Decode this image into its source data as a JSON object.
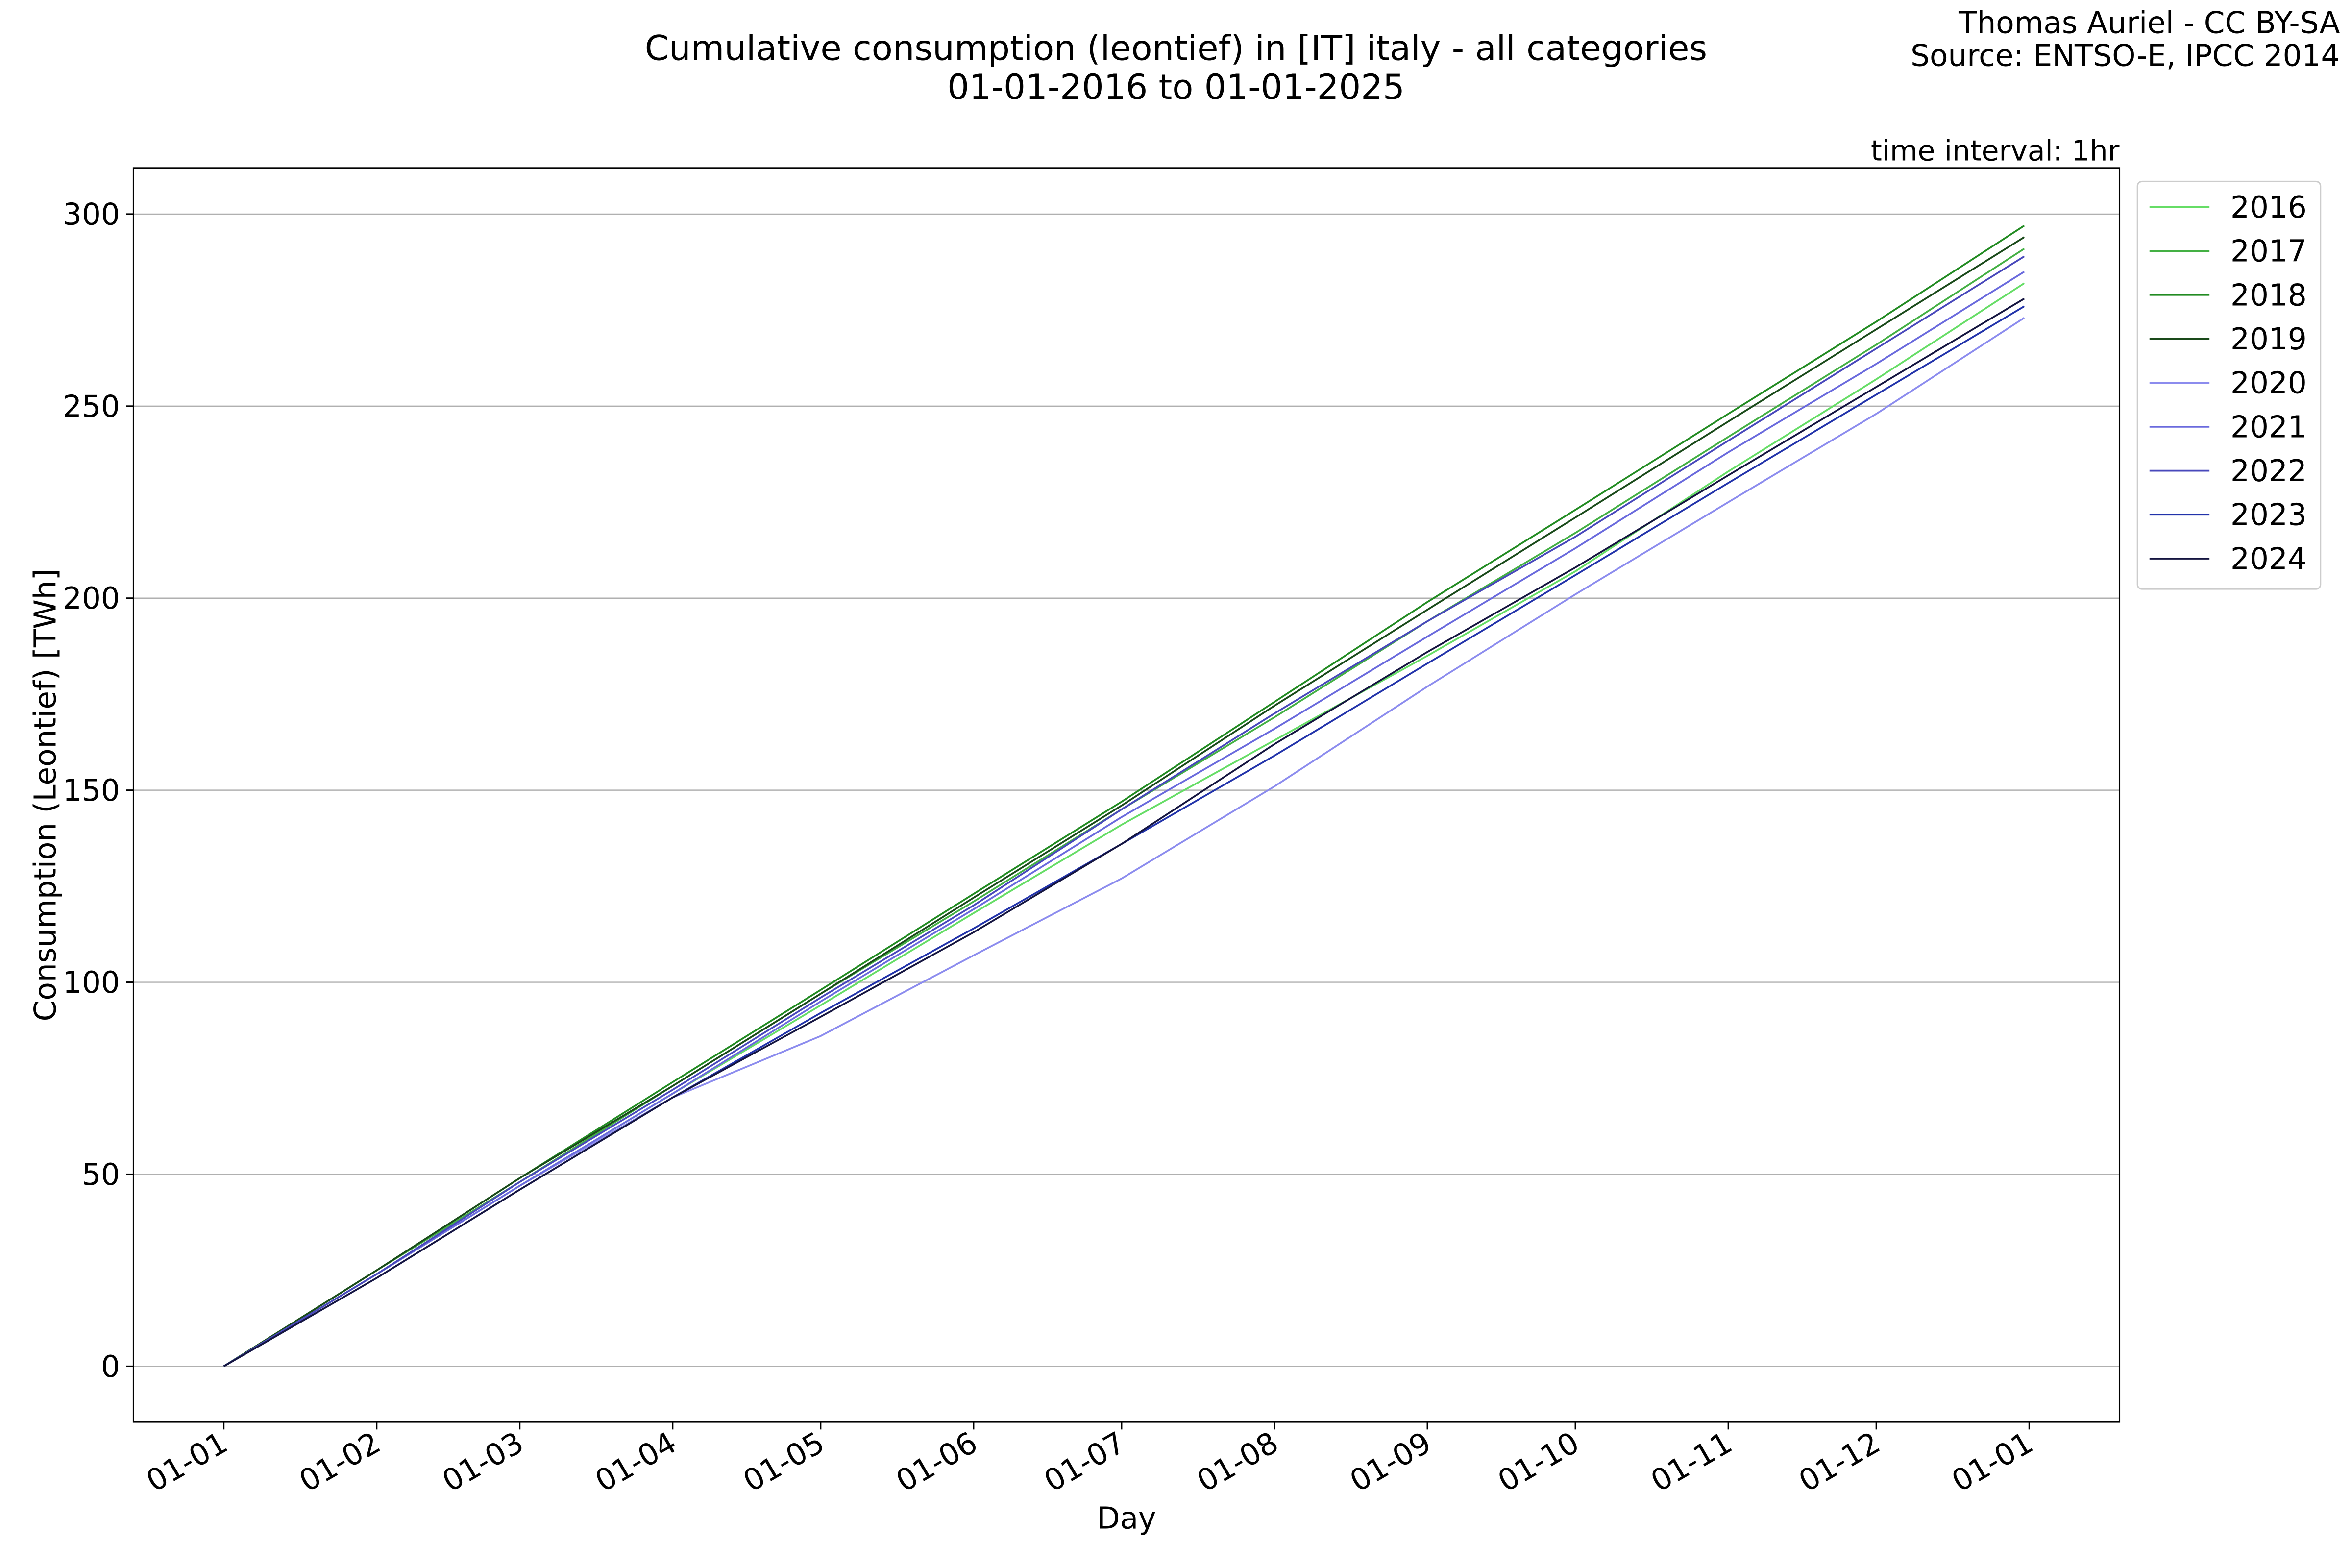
{
  "chart_data": {
    "type": "line",
    "title": "Cumulative consumption (leontief) in [IT] italy - all categories",
    "subtitle": "01-01-2016 to 01-01-2025",
    "credit": [
      "Thomas Auriel - CC BY-SA",
      "Source: ENTSO-E, IPCC 2014"
    ],
    "annotation": "time interval: 1hr",
    "x_label": "Day",
    "y_label": "Consumption (Leontief) [TWh]",
    "x": [
      0,
      31,
      60,
      91,
      121,
      152,
      182,
      213,
      244,
      274,
      305,
      335,
      365
    ],
    "series": [
      {
        "name": "2016",
        "color": "#66dd66",
        "values": [
          0,
          24,
          47,
          71,
          94,
          118,
          141,
          163,
          185,
          207,
          233,
          257,
          282
        ]
      },
      {
        "name": "2017",
        "color": "#44b044",
        "values": [
          0,
          25,
          48,
          73,
          97,
          121,
          145,
          169,
          194,
          217,
          242,
          266,
          291
        ]
      },
      {
        "name": "2018",
        "color": "#228b22",
        "values": [
          0,
          25,
          49,
          74,
          98,
          123,
          147,
          173,
          199,
          223,
          248,
          272,
          297
        ]
      },
      {
        "name": "2019",
        "color": "#1a4a1a",
        "values": [
          0,
          25,
          49,
          73,
          97,
          122,
          146,
          172,
          197,
          221,
          246,
          270,
          294
        ]
      },
      {
        "name": "2020",
        "color": "#8c8cee",
        "values": [
          0,
          24,
          47,
          70,
          86,
          107,
          127,
          151,
          177,
          201,
          225,
          248,
          273
        ]
      },
      {
        "name": "2021",
        "color": "#6a6add",
        "values": [
          0,
          24,
          47,
          71,
          95,
          119,
          143,
          166,
          190,
          213,
          238,
          261,
          285
        ]
      },
      {
        "name": "2022",
        "color": "#4848bb",
        "values": [
          0,
          24,
          48,
          72,
          96,
          120,
          145,
          170,
          194,
          216,
          241,
          265,
          289
        ]
      },
      {
        "name": "2023",
        "color": "#2233aa",
        "values": [
          0,
          23,
          46,
          70,
          92,
          114,
          136,
          159,
          183,
          206,
          230,
          253,
          276
        ]
      },
      {
        "name": "2024",
        "color": "#151540",
        "values": [
          0,
          23,
          46,
          70,
          91,
          113,
          136,
          162,
          186,
          208,
          232,
          255,
          278
        ]
      }
    ],
    "xlim": [
      -18.3,
      384.3
    ],
    "xticks": [
      {
        "value": 0,
        "label": "01-01"
      },
      {
        "value": 31,
        "label": "01-02"
      },
      {
        "value": 60,
        "label": "01-03"
      },
      {
        "value": 91,
        "label": "01-04"
      },
      {
        "value": 121,
        "label": "01-05"
      },
      {
        "value": 152,
        "label": "01-06"
      },
      {
        "value": 182,
        "label": "01-07"
      },
      {
        "value": 213,
        "label": "01-08"
      },
      {
        "value": 244,
        "label": "01-09"
      },
      {
        "value": 274,
        "label": "01-10"
      },
      {
        "value": 305,
        "label": "01-11"
      },
      {
        "value": 335,
        "label": "01-12"
      },
      {
        "value": 366,
        "label": "01-01"
      }
    ],
    "ylim": [
      -14.5,
      312
    ],
    "yticks": [
      0,
      50,
      100,
      150,
      200,
      250,
      300
    ],
    "grid": true,
    "legend": "outside-right"
  }
}
